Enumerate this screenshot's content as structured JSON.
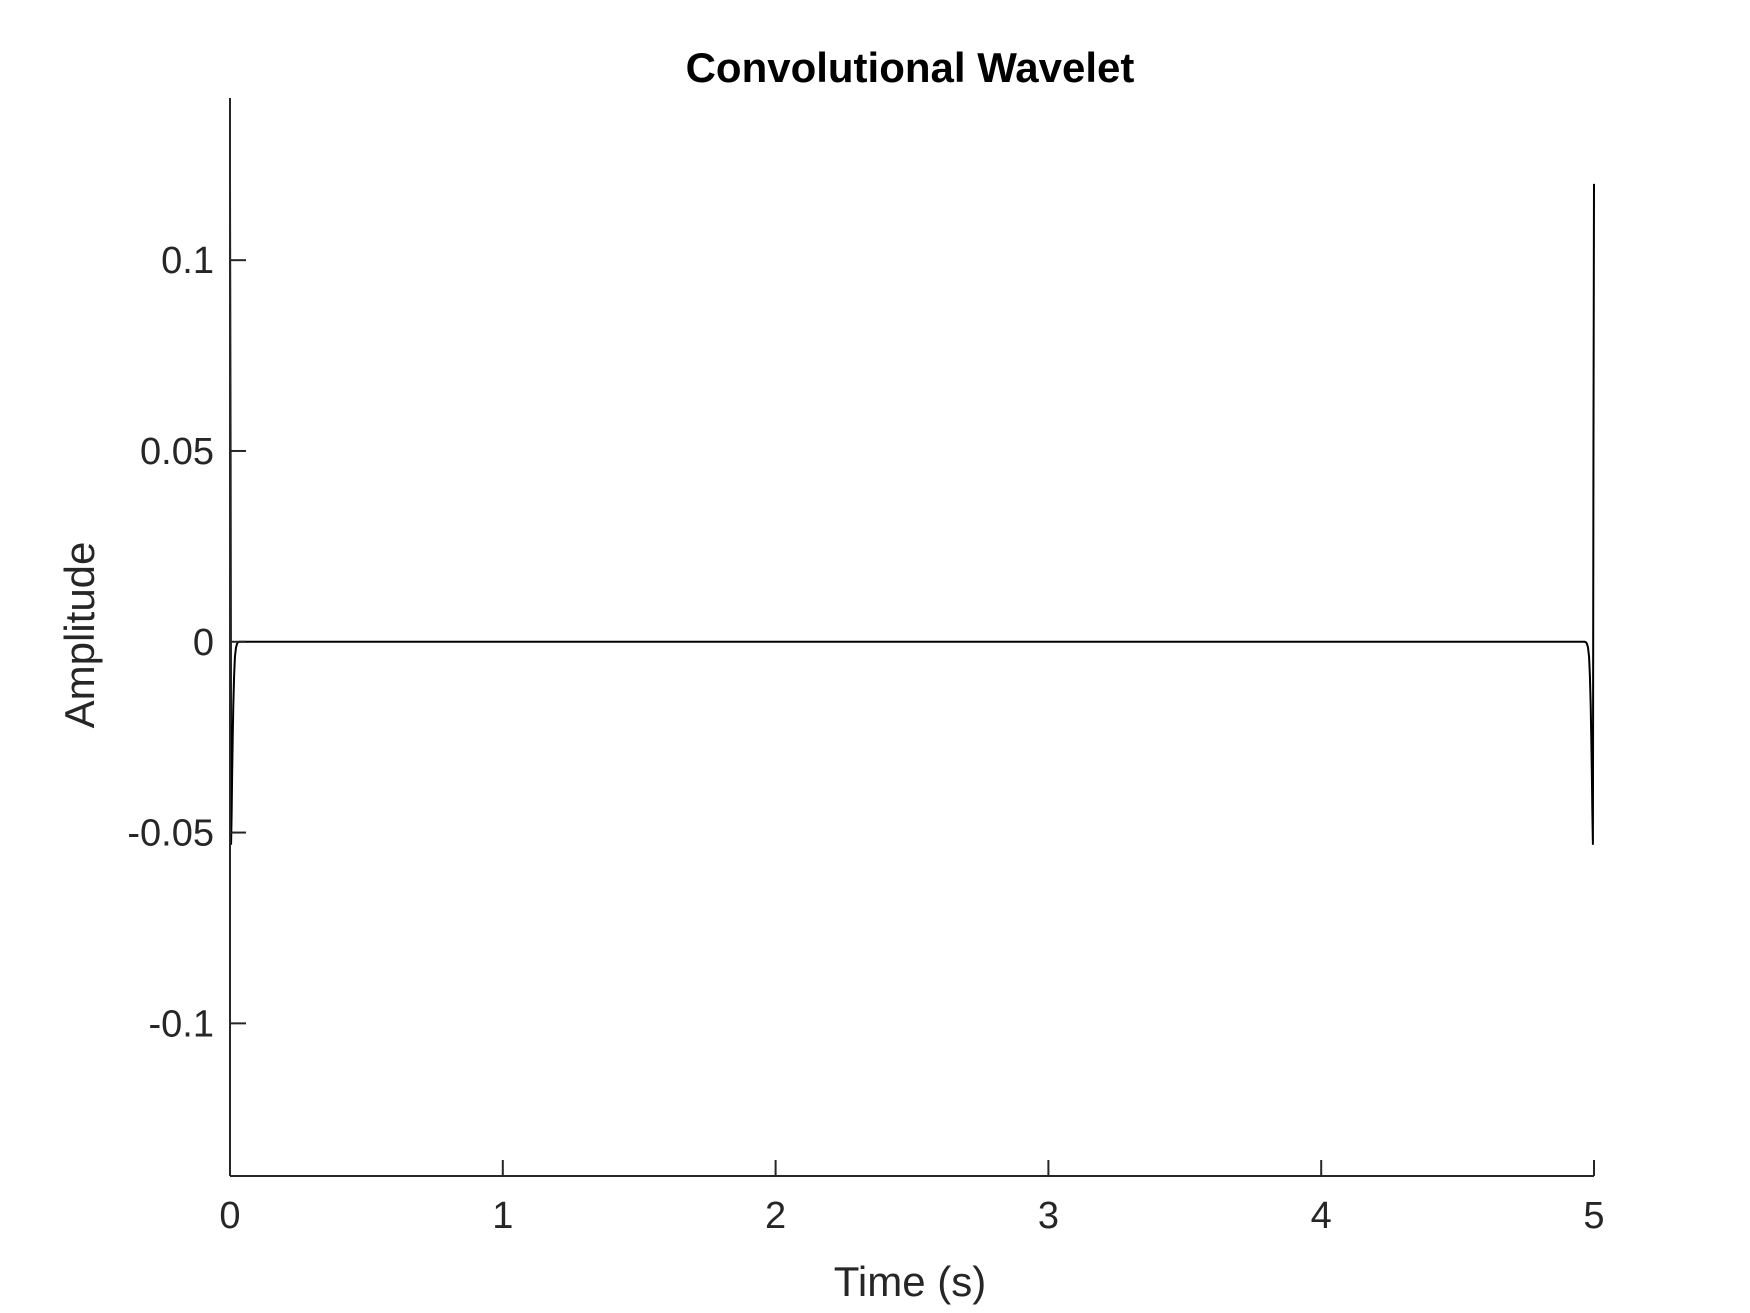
{
  "chart_data": {
    "type": "line",
    "title": "Convolutional Wavelet",
    "xlabel": "Time (s)",
    "ylabel": "Amplitude",
    "xlim": [
      0,
      5
    ],
    "ylim": [
      -0.14,
      0.1425
    ],
    "xticks": [
      0,
      1,
      2,
      3,
      4,
      5
    ],
    "xtick_labels": [
      "0",
      "1",
      "2",
      "3",
      "4",
      "5"
    ],
    "yticks": [
      -0.1,
      -0.05,
      0,
      0.05,
      0.1
    ],
    "ytick_labels": [
      "-0.1",
      "-0.05",
      "0",
      "0.05",
      "0.1"
    ],
    "grid": false,
    "box": false,
    "series": [
      {
        "color": "#000000",
        "x": [
          0,
          0.002,
          0.004,
          0.006,
          0.008,
          0.01,
          0.012,
          0.015,
          0.018,
          0.022,
          0.026,
          0.03,
          0.035,
          4.965,
          4.97,
          4.974,
          4.978,
          4.982,
          4.985,
          4.988,
          4.99,
          4.992,
          4.994,
          4.996,
          4.998,
          5.0
        ],
        "y": [
          0.12,
          0.05,
          -0.053,
          -0.045,
          -0.034,
          -0.025,
          -0.017,
          -0.009,
          -0.004,
          -0.0015,
          -0.0005,
          -0.0001,
          0,
          0,
          -0.0001,
          -0.0005,
          -0.0015,
          -0.004,
          -0.009,
          -0.017,
          -0.025,
          -0.034,
          -0.045,
          -0.053,
          0.05,
          0.12
        ]
      }
    ]
  }
}
